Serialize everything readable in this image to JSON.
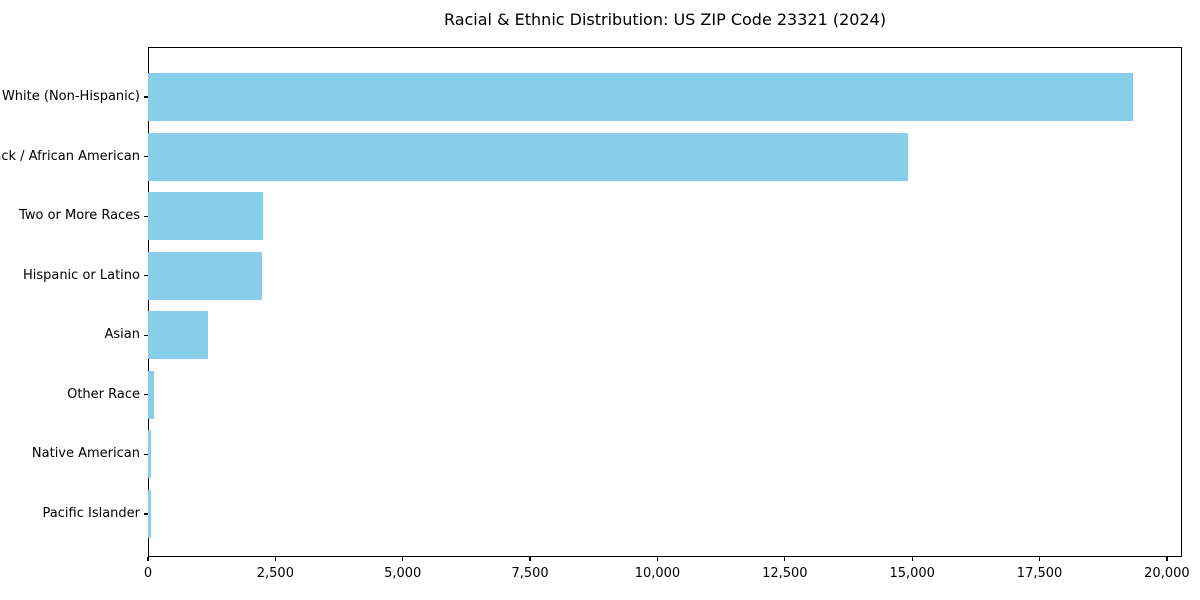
{
  "title": "Racial & Ethnic Distribution: US ZIP Code 23321 (2024)",
  "colors": {
    "bar": "#87CEEB",
    "axis": "#000000",
    "background": "#FFFFFF",
    "text": "#000000"
  },
  "chart_data": {
    "type": "bar",
    "orientation": "horizontal",
    "title": "Racial & Ethnic Distribution: US ZIP Code 23321 (2024)",
    "categories": [
      "White (Non-Hispanic)",
      "Black / African American",
      "Two or More Races",
      "Hispanic or Latino",
      "Asian",
      "Other Race",
      "Native American",
      "Pacific Islander"
    ],
    "values": [
      19330,
      14925,
      2255,
      2230,
      1170,
      120,
      60,
      50
    ],
    "bar_color": "#87CEEB",
    "xlabel": "",
    "ylabel": "",
    "xlim": [
      0,
      20296
    ],
    "x_ticks": [
      0,
      2500,
      5000,
      7500,
      10000,
      12500,
      15000,
      17500,
      20000
    ],
    "x_tick_labels": [
      "0",
      "2,500",
      "5,000",
      "7,500",
      "10,000",
      "12,500",
      "15,000",
      "17,500",
      "20,000"
    ],
    "grid": false,
    "legend": null
  }
}
